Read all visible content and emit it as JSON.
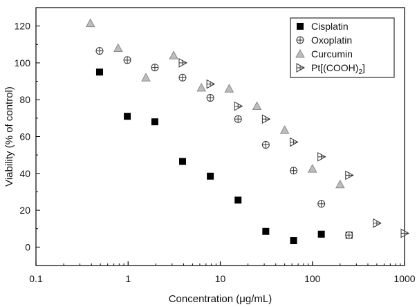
{
  "chart_data": {
    "type": "scatter",
    "title": "",
    "xlabel": "Concentration (μg/mL)",
    "ylabel": "Viability (% of control)",
    "xscale": "log",
    "xlim": [
      0.1,
      1000
    ],
    "ylim": [
      -10,
      130
    ],
    "xticks": [
      0.1,
      1,
      10,
      100,
      1000
    ],
    "xtick_labels": [
      "0.1",
      "1",
      "10",
      "100",
      "1000"
    ],
    "yticks": [
      0,
      20,
      40,
      60,
      80,
      100,
      120
    ],
    "ytick_labels": [
      "0",
      "20",
      "40",
      "60",
      "80",
      "100",
      "120"
    ],
    "grid": false,
    "legend_position": "top-right",
    "series": [
      {
        "name": "Cisplatin",
        "marker": "filled-square",
        "color": "#000000",
        "points": [
          [
            0.49,
            95
          ],
          [
            0.98,
            71
          ],
          [
            1.95,
            68
          ],
          [
            3.9,
            46.5
          ],
          [
            7.8,
            38.5
          ],
          [
            15.6,
            25.5
          ],
          [
            31.2,
            8.5
          ],
          [
            62.5,
            3.5
          ],
          [
            125,
            7
          ],
          [
            250,
            6.5
          ]
        ]
      },
      {
        "name": "Oxoplatin",
        "marker": "circle-plus",
        "color": "#333333",
        "points": [
          [
            0.49,
            106.5
          ],
          [
            0.98,
            101.5
          ],
          [
            1.95,
            97.5
          ],
          [
            3.9,
            92
          ],
          [
            7.8,
            81
          ],
          [
            15.6,
            69.5
          ],
          [
            31.2,
            55.5
          ],
          [
            62.5,
            41.5
          ],
          [
            125,
            23.5
          ],
          [
            250,
            6.5
          ]
        ]
      },
      {
        "name": "Curcumin",
        "marker": "triangle",
        "color": "#999999",
        "points": [
          [
            0.39,
            121.5
          ],
          [
            0.78,
            108
          ],
          [
            1.56,
            92
          ],
          [
            3.12,
            104
          ],
          [
            6.25,
            86.5
          ],
          [
            12.5,
            86
          ],
          [
            25,
            76.5
          ],
          [
            50,
            63.5
          ],
          [
            100,
            42.5
          ],
          [
            200,
            34
          ]
        ]
      },
      {
        "name": "Pt[(COOH)₂]",
        "legend_base": "Pt[(COOH)",
        "legend_sub": "2",
        "legend_tail": "]",
        "marker": "triangle-right-plus",
        "color": "#333333",
        "points": [
          [
            3.9,
            100
          ],
          [
            7.8,
            88.5
          ],
          [
            15.6,
            76.5
          ],
          [
            31.2,
            69.5
          ],
          [
            62.5,
            57
          ],
          [
            125,
            49
          ],
          [
            250,
            39
          ],
          [
            500,
            13
          ],
          [
            1000,
            7.5
          ]
        ]
      }
    ]
  }
}
